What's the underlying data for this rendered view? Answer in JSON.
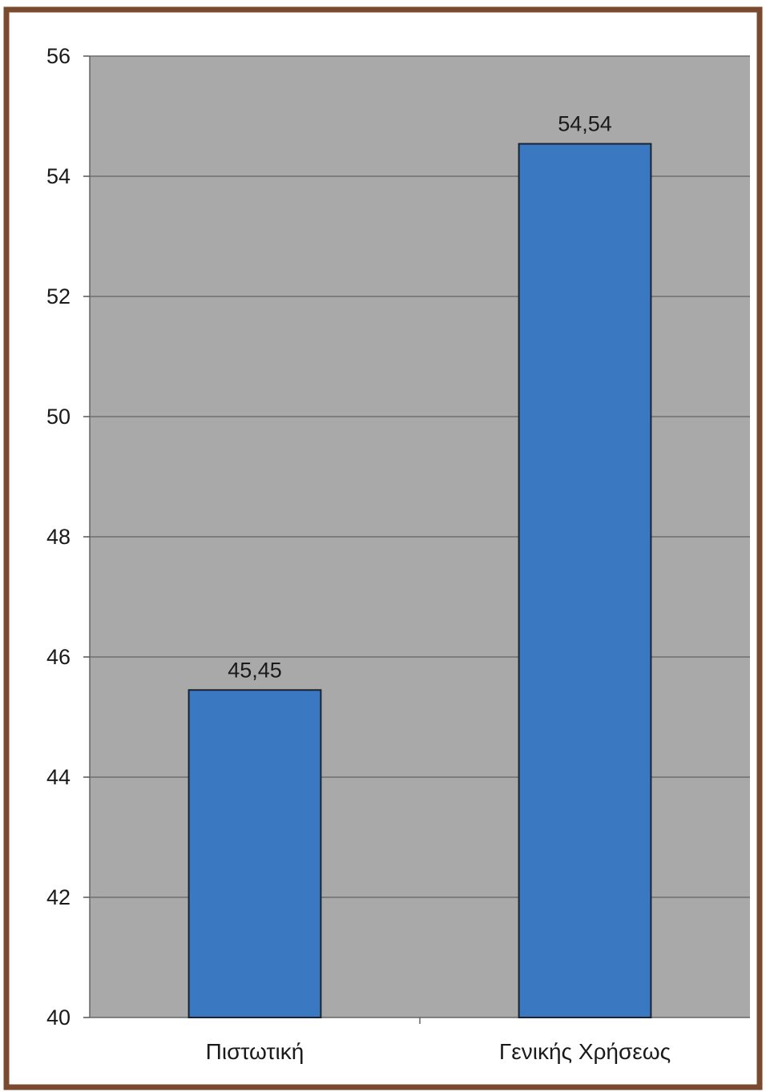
{
  "colors": {
    "border": "#7a4a2e",
    "plot_background": "#a9a9a9",
    "gridline": "#6f6f6f",
    "bar_fill": "#3a78c2",
    "bar_stroke": "#1a2330"
  },
  "chart_data": {
    "type": "bar",
    "categories": [
      "Πιστωτική",
      "Γενικής Χρήσεως"
    ],
    "values": [
      45.45,
      54.54
    ],
    "value_labels": [
      "45,45",
      "54,54"
    ],
    "title": "",
    "xlabel": "",
    "ylabel": "",
    "ylim": [
      40,
      56
    ],
    "yticks": [
      40,
      42,
      44,
      46,
      48,
      50,
      52,
      54,
      56
    ],
    "ytick_labels": [
      "40",
      "42",
      "44",
      "46",
      "48",
      "50",
      "52",
      "54",
      "56"
    ],
    "grid": true,
    "legend": "none"
  }
}
